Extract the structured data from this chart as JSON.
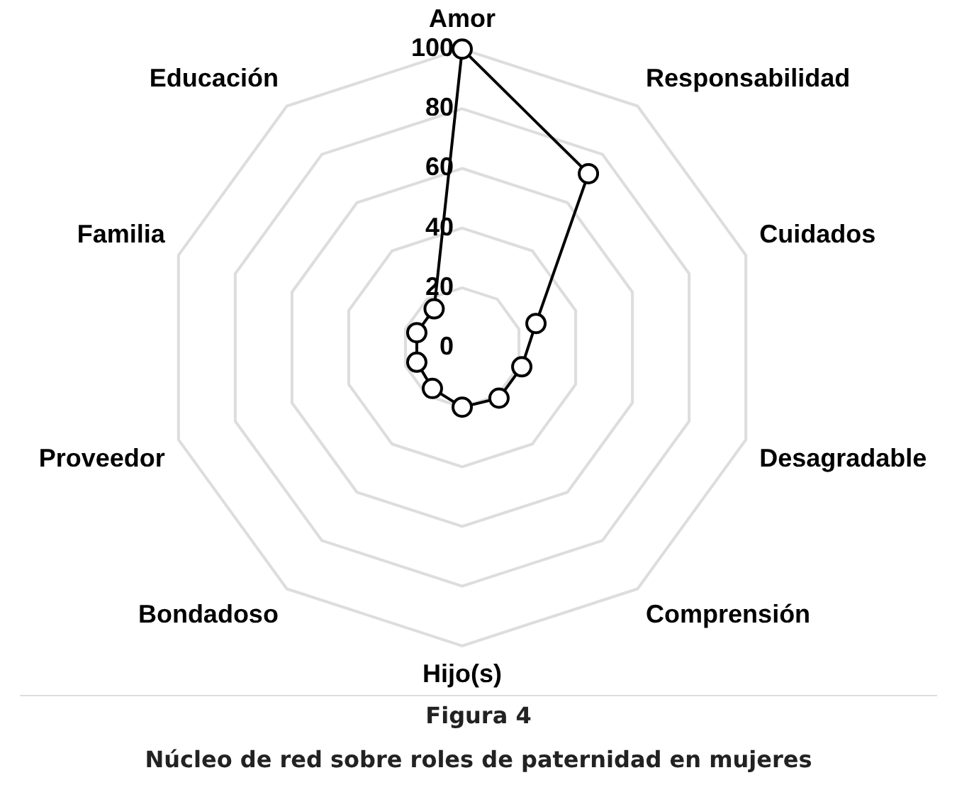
{
  "chart_data": {
    "type": "radar",
    "title": "Figura 4",
    "subtitle": "Núcleo de red sobre roles de paternidad en mujeres",
    "categories": [
      "Amor",
      "Responsabilidad",
      "Cuidados",
      "Desagradable",
      "Comprensión",
      "Hijo(s)",
      "Bondadoso",
      "Proveedor",
      "Familia",
      "Educación"
    ],
    "series": [
      {
        "color": "#000000",
        "values": [
          100,
          72,
          26,
          21,
          21,
          20,
          17,
          16,
          16,
          16
        ]
      }
    ],
    "ylim": [
      0,
      100
    ],
    "yticks": [
      0,
      20,
      40,
      60,
      80,
      100
    ],
    "grid": true,
    "marker": "circle"
  }
}
